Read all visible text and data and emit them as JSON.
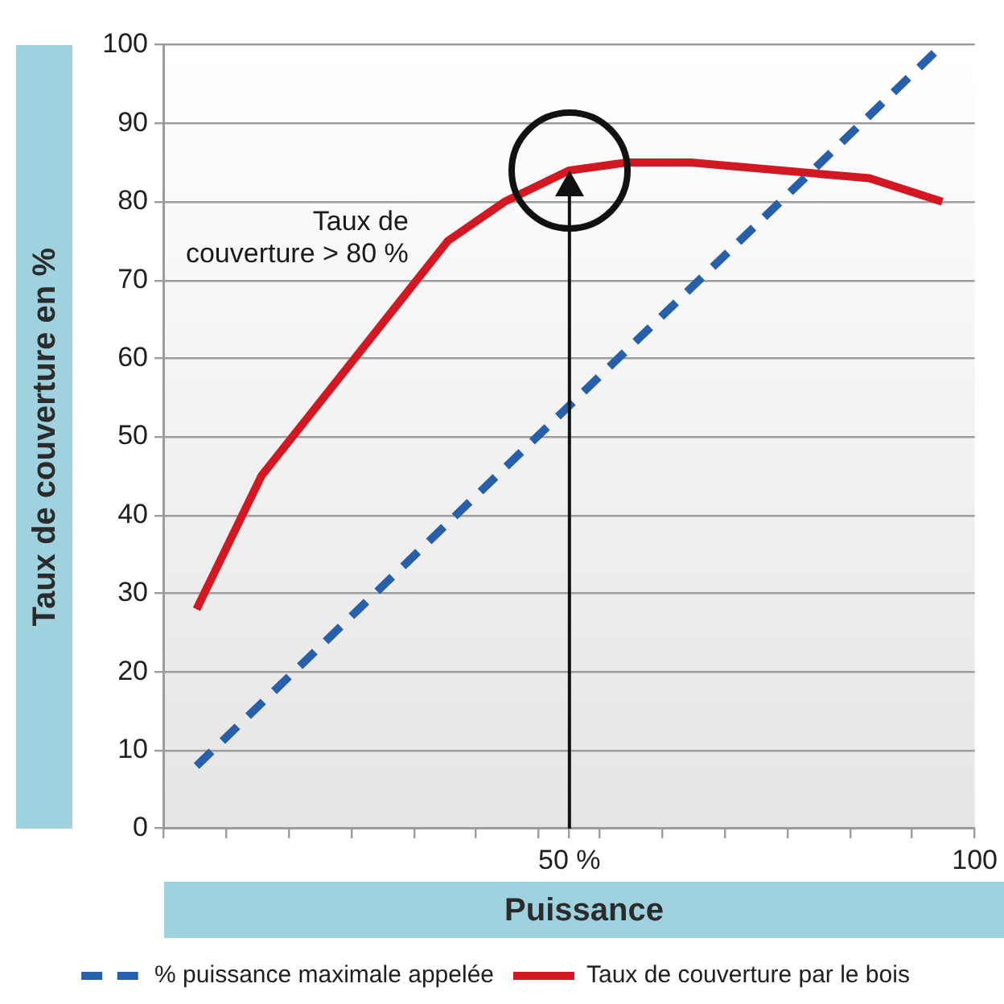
{
  "chart_data": {
    "type": "line",
    "xlabel": "Puissance",
    "ylabel": "Taux de couverture en %",
    "series": [
      {
        "name": "% puissance maximale appelée",
        "color": "#285fa9",
        "line_style": "dashed",
        "x": [
          4,
          95
        ],
        "values": [
          8,
          99
        ]
      },
      {
        "name": "Taux de couverture par le bois",
        "color": "#d21923",
        "line_style": "solid",
        "x": [
          4,
          12,
          35,
          42,
          50,
          57,
          65,
          87,
          96
        ],
        "values": [
          28,
          45,
          75,
          80,
          84,
          85,
          85,
          83,
          80
        ]
      }
    ],
    "xlim": [
      0,
      100
    ],
    "ylim": [
      0,
      100
    ],
    "xticks": [
      {
        "value": 0,
        "label": null
      },
      {
        "value": 7.7,
        "label": null
      },
      {
        "value": 15.4,
        "label": null
      },
      {
        "value": 23.1,
        "label": null
      },
      {
        "value": 30.8,
        "label": null
      },
      {
        "value": 38.5,
        "label": null
      },
      {
        "value": 46.2,
        "label": null
      },
      {
        "value": 50,
        "label": "50 %"
      },
      {
        "value": 53.8,
        "label": null
      },
      {
        "value": 61.5,
        "label": null
      },
      {
        "value": 69.2,
        "label": null
      },
      {
        "value": 76.9,
        "label": null
      },
      {
        "value": 84.6,
        "label": null
      },
      {
        "value": 92.3,
        "label": null
      },
      100
    ],
    "yticks": [
      0,
      10,
      20,
      30,
      40,
      50,
      60,
      70,
      80,
      90,
      100
    ],
    "ref_lines": [
      {
        "axis": "x",
        "value": 50,
        "color": "#111111"
      }
    ],
    "grid": "y",
    "legend": "bottom",
    "annotations": [
      "Taux de couverture > 80 %"
    ]
  }
}
